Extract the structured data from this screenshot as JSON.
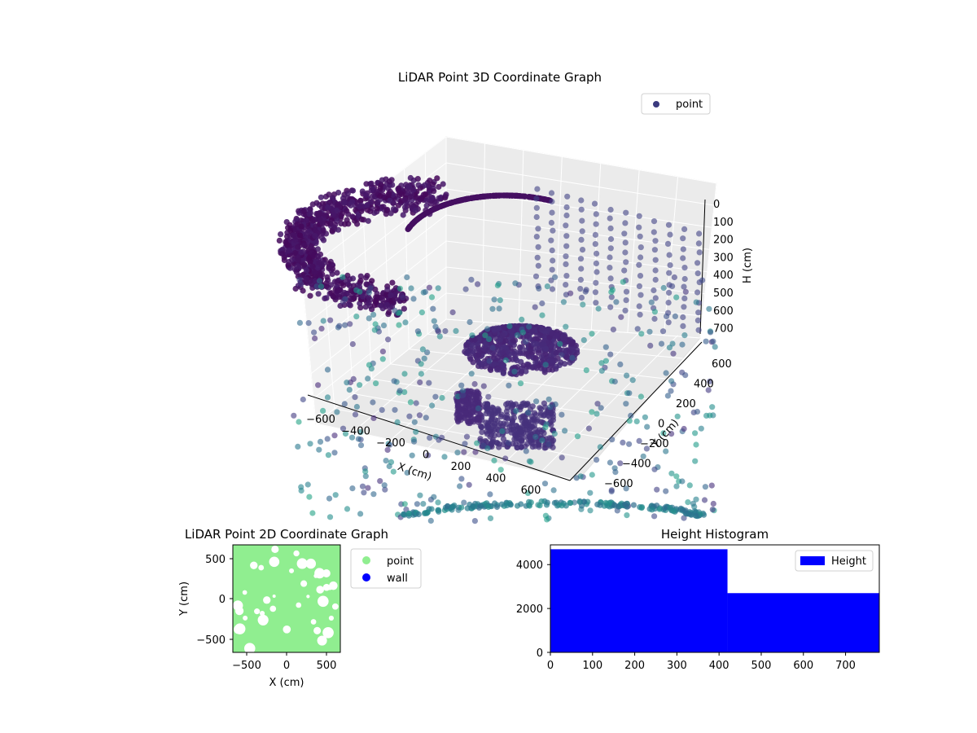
{
  "chart_data": [
    {
      "type": "scatter",
      "title": "LiDAR Point 3D Coordinate Graph",
      "xlabel": "X (cm)",
      "ylabel": "Y (cm)",
      "zlabel": "H (cm)",
      "xlim": [
        -700,
        700
      ],
      "ylim": [
        -700,
        700
      ],
      "zlim": [
        0,
        700
      ],
      "z_inverted": true,
      "grid": true,
      "legend": {
        "position": "top-right",
        "entries": [
          {
            "label": "point",
            "color": "#3b3a7f"
          }
        ]
      },
      "x_ticks": [
        "−600",
        "−400",
        "−200",
        "0",
        "200",
        "400",
        "600"
      ],
      "y_ticks": [
        "−600",
        "−400",
        "−200",
        "0",
        "200",
        "400",
        "600"
      ],
      "z_ticks": [
        "0",
        "100",
        "200",
        "300",
        "400",
        "500",
        "600",
        "700"
      ],
      "colormap": "viridis",
      "series": [
        {
          "name": "point",
          "description_free": true
        }
      ]
    },
    {
      "type": "scatter",
      "title": "LiDAR Point 2D Coordinate Graph",
      "xlabel": "X (cm)",
      "ylabel": "Y (cm)",
      "xlim": [
        -700,
        700
      ],
      "ylim": [
        -700,
        700
      ],
      "x_ticks": [
        "−500",
        "0",
        "500"
      ],
      "y_ticks": [
        "500",
        "0",
        "−500"
      ],
      "legend": {
        "position": "outside-right",
        "entries": [
          {
            "label": "point",
            "color": "#90ee90"
          },
          {
            "label": "wall",
            "color": "#0000ff"
          }
        ]
      }
    },
    {
      "type": "bar",
      "title": "Height Histogram",
      "xlabel": "",
      "ylabel": "",
      "bins": [
        {
          "from": 0,
          "to": 420,
          "count": 4700
        },
        {
          "from": 420,
          "to": 780,
          "count": 2700
        }
      ],
      "xlim": [
        0,
        780
      ],
      "ylim": [
        0,
        4900
      ],
      "x_ticks": [
        "0",
        "100",
        "200",
        "300",
        "400",
        "500",
        "600",
        "700"
      ],
      "y_ticks": [
        "0",
        "2000",
        "4000"
      ],
      "color": "#0000ff",
      "legend": {
        "position": "top-right",
        "entries": [
          {
            "label": "Height",
            "color": "#0000ff"
          }
        ]
      }
    }
  ]
}
